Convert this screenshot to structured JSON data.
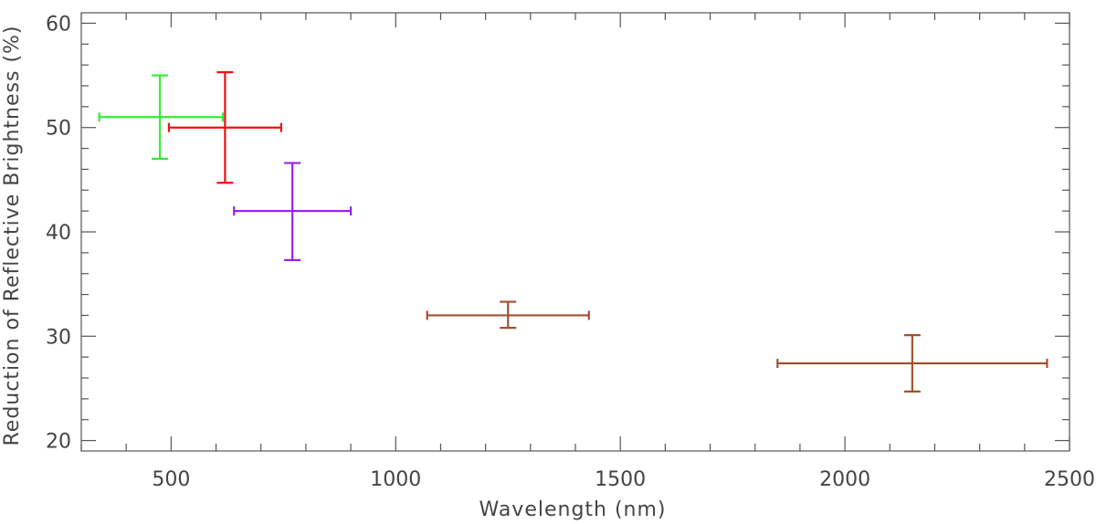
{
  "chart_data": {
    "type": "scatter",
    "title": "",
    "xlabel": "Wavelength (nm)",
    "ylabel": "Reduction of Reflective Brightness (%)",
    "xlim": [
      300,
      2500
    ],
    "ylim": [
      19,
      61
    ],
    "xticks": [
      500,
      1000,
      1500,
      2000,
      2500
    ],
    "yticks": [
      20,
      30,
      40,
      50,
      60
    ],
    "x_minor_step": 100,
    "y_minor_step": 2,
    "grid": false,
    "points": [
      {
        "x": 475,
        "y": 51,
        "xerr": [
          340,
          615
        ],
        "yerr": [
          47,
          55
        ],
        "color": "#33ee33"
      },
      {
        "x": 620,
        "y": 50,
        "xerr": [
          495,
          745
        ],
        "yerr": [
          44.7,
          55.3
        ],
        "color": "#ee1111"
      },
      {
        "x": 770,
        "y": 42,
        "xerr": [
          640,
          900
        ],
        "yerr": [
          37.3,
          46.6
        ],
        "color": "#9922ee"
      },
      {
        "x": 1250,
        "y": 32,
        "xerr": [
          1070,
          1430
        ],
        "yerr": [
          30.8,
          33.3
        ],
        "color": "#a0522d"
      },
      {
        "x": 2150,
        "y": 27.4,
        "xerr": [
          1850,
          2450
        ],
        "yerr": [
          24.7,
          30.1
        ],
        "color": "#a0522d"
      }
    ]
  }
}
